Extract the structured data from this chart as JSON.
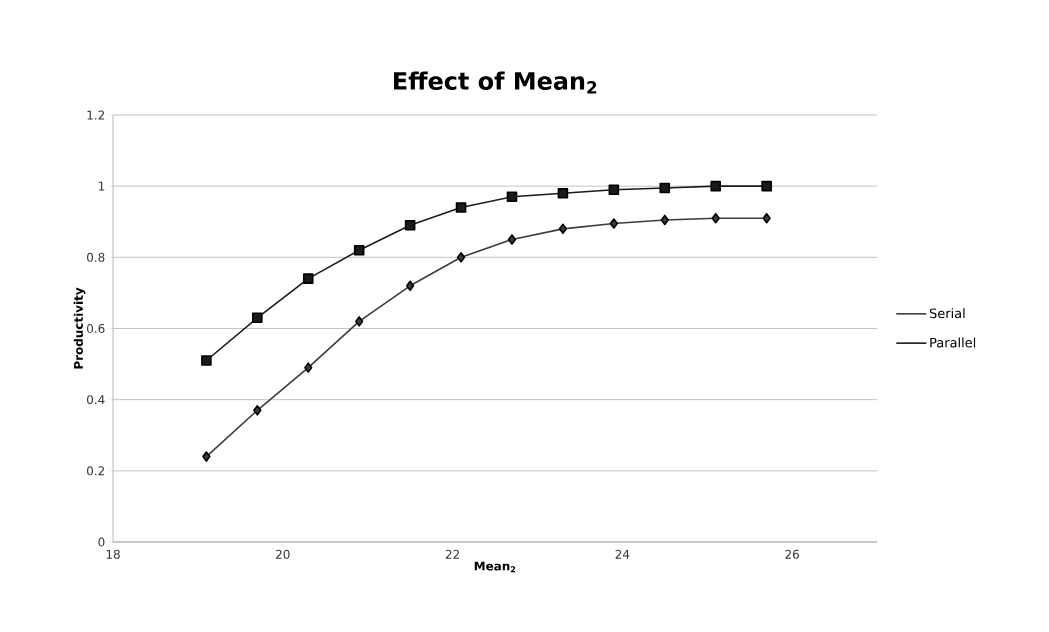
{
  "chart_data": {
    "type": "line",
    "title": "Effect of Mean$_{2}$",
    "xlabel": "Mean$_{2}$",
    "ylabel": "Productivity",
    "x": [
      19.1,
      19.7,
      20.3,
      20.9,
      21.5,
      22.1,
      22.7,
      23.3,
      23.9,
      24.5,
      25.1,
      25.7
    ],
    "series": [
      {
        "name": "Serial",
        "color": "#3c3c3c",
        "marker": "diamond",
        "values": [
          0.24,
          0.37,
          0.49,
          0.62,
          0.72,
          0.8,
          0.85,
          0.88,
          0.895,
          0.905,
          0.91,
          0.91
        ]
      },
      {
        "name": "Parallel",
        "color": "#1a1a1a",
        "marker": "square",
        "values": [
          0.51,
          0.63,
          0.74,
          0.82,
          0.89,
          0.94,
          0.97,
          0.98,
          0.99,
          0.995,
          1.0,
          1.0
        ]
      }
    ],
    "xlim": [
      18,
      27
    ],
    "xticks": [
      18,
      20,
      22,
      24,
      26
    ],
    "ylim": [
      0,
      1.2
    ],
    "yticks": [
      0,
      0.2,
      0.4,
      0.6,
      0.8,
      1,
      1.2
    ],
    "grid": "y",
    "legend": "right"
  }
}
